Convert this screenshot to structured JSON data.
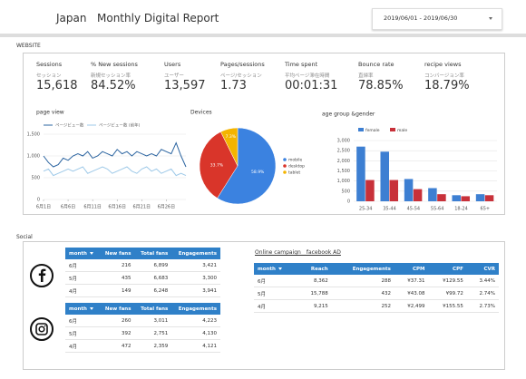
{
  "header": {
    "country": "Japan",
    "title": "Monthly Digital Report",
    "date_range": "2019/06/01 - 2019/06/30"
  },
  "website": {
    "label": "WEBSITE",
    "kpis": [
      {
        "name": "Sessions",
        "sub": "セッション",
        "value": "15,618"
      },
      {
        "name": "% New sessions",
        "sub": "新規セッション率",
        "value": "84.52%"
      },
      {
        "name": "Users",
        "sub": "ユーザー",
        "value": "13,597"
      },
      {
        "name": "Pages/sessions",
        "sub": "ページ/セッション",
        "value": "1.73"
      },
      {
        "name": "Time spent",
        "sub": "平均ページ滞在時間",
        "value": "00:01:31"
      },
      {
        "name": "Bounce rate",
        "sub": "直帰率",
        "value": "78.85%"
      },
      {
        "name": "recipe views",
        "sub": "コンバージョン率",
        "value": "18.79%"
      }
    ]
  },
  "chart_data": [
    {
      "type": "line",
      "title": "page view",
      "categories": [
        "6月1日",
        null,
        null,
        null,
        null,
        "6月6日",
        null,
        null,
        null,
        null,
        "6月11日",
        null,
        null,
        null,
        null,
        "6月16日",
        null,
        null,
        null,
        null,
        "6月21日",
        null,
        null,
        null,
        null,
        "6月26日",
        null,
        null,
        null,
        null
      ],
      "series": [
        {
          "name": "ページビュー数",
          "color": "#2b64a0",
          "values": [
            1000,
            850,
            750,
            800,
            950,
            900,
            1000,
            1050,
            1000,
            1100,
            950,
            1000,
            1100,
            1050,
            1000,
            1150,
            1050,
            1100,
            1000,
            1100,
            1050,
            1000,
            1050,
            1000,
            1150,
            1100,
            1050,
            1300,
            1000,
            750
          ]
        },
        {
          "name": "ページビュー数 (前年)",
          "color": "#9ec9e8",
          "values": [
            650,
            700,
            550,
            600,
            650,
            700,
            650,
            700,
            750,
            600,
            650,
            700,
            750,
            700,
            600,
            650,
            700,
            750,
            650,
            600,
            700,
            750,
            650,
            700,
            600,
            650,
            700,
            550,
            600,
            550
          ]
        }
      ],
      "ylim": [
        0,
        1500
      ],
      "yticks": [
        0,
        500,
        {
          "value": 1000,
          "label": "1,000"
        },
        {
          "value": 1500,
          "label": "1,500"
        }
      ],
      "grid": true
    },
    {
      "type": "pie",
      "title": "Devices",
      "categories": [
        "mobile",
        "desktop",
        "tablet"
      ],
      "values": [
        58.9,
        33.7,
        7.3
      ],
      "value_labels": [
        "58.9%",
        "33.7%",
        "7.3%"
      ],
      "colors": [
        "#3b82e0",
        "#d9352a",
        "#f4b400"
      ]
    },
    {
      "type": "bar",
      "title": "age group &gender",
      "categories": [
        "25-34",
        "35-44",
        "45-54",
        "55-64",
        "18-24",
        "65+"
      ],
      "series": [
        {
          "name": "female",
          "color": "#3d7fd2",
          "values": [
            2700,
            2450,
            1100,
            650,
            300,
            350
          ]
        },
        {
          "name": "male",
          "color": "#c8313a",
          "values": [
            1050,
            1050,
            600,
            350,
            250,
            300
          ]
        }
      ],
      "ylim": [
        0,
        3000
      ],
      "yticks": [
        0,
        500,
        {
          "value": 1000,
          "label": "1,000"
        },
        {
          "value": 1500,
          "label": "1,500"
        },
        {
          "value": 2000,
          "label": "2,000"
        },
        {
          "value": 2500,
          "label": "2,500"
        },
        {
          "value": 3000,
          "label": "3,000"
        }
      ],
      "grid": true
    }
  ],
  "social": {
    "label": "Social",
    "facebook": {
      "columns": [
        "month",
        "New fans",
        "Total fans",
        "Engagements"
      ],
      "rows": [
        [
          "6月",
          "216",
          "6,899",
          "3,421"
        ],
        [
          "5月",
          "435",
          "6,683",
          "3,300"
        ],
        [
          "4月",
          "149",
          "6,248",
          "3,941"
        ]
      ]
    },
    "instagram": {
      "columns": [
        "month",
        "New fans",
        "Total fans",
        "Engagements"
      ],
      "rows": [
        [
          "6月",
          "260",
          "3,011",
          "4,223"
        ],
        [
          "5月",
          "392",
          "2,751",
          "4,130"
        ],
        [
          "4月",
          "472",
          "2,359",
          "4,121"
        ]
      ]
    },
    "campaign": {
      "title": "Online campaign__facebook AD",
      "columns": [
        "month",
        "Reach",
        "Engagements",
        "CPM",
        "CPF",
        "CVR"
      ],
      "rows": [
        [
          "6月",
          "8,362",
          "288",
          "¥37.31",
          "¥129.55",
          "3.44%"
        ],
        [
          "5月",
          "15,788",
          "432",
          "¥43.08",
          "¥99.72",
          "2.74%"
        ],
        [
          "4月",
          "9,215",
          "252",
          "¥2,499",
          "¥155.55",
          "2.73%"
        ]
      ]
    }
  }
}
